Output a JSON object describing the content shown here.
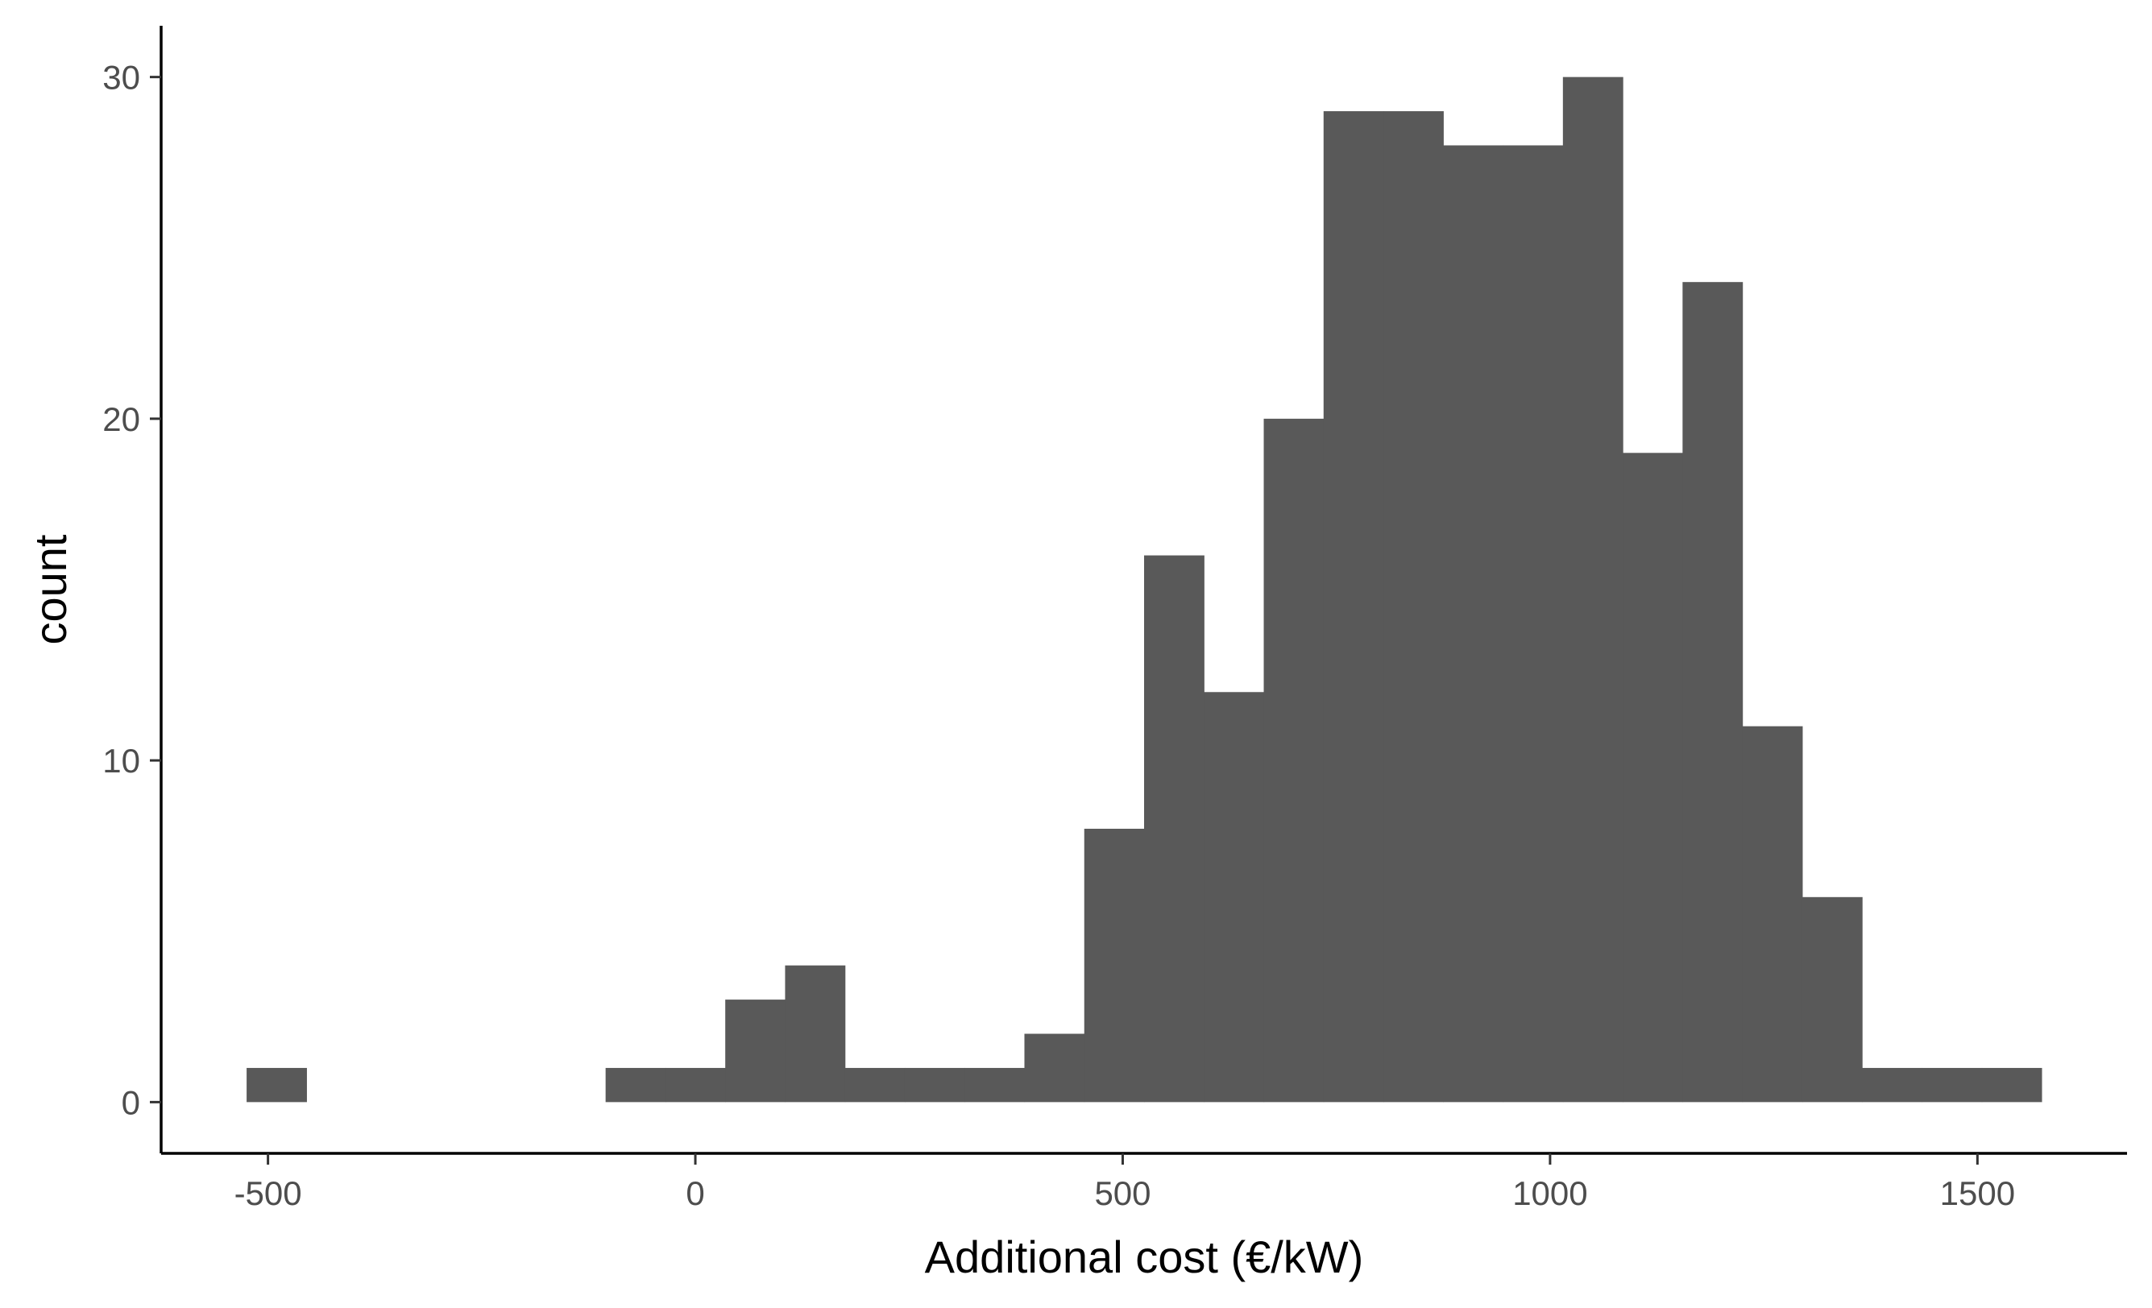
{
  "chart_data": {
    "type": "bar",
    "subtype": "histogram",
    "xlabel": "Additional cost (€/kW)",
    "ylabel": "count",
    "xlim": [
      -625,
      1675
    ],
    "ylim": [
      -1.5,
      31.5
    ],
    "x_ticks": [
      {
        "value": -500,
        "label": "-500"
      },
      {
        "value": 0,
        "label": "0"
      },
      {
        "value": 500,
        "label": "500"
      },
      {
        "value": 1000,
        "label": "1000"
      },
      {
        "value": 1500,
        "label": "1500"
      }
    ],
    "y_ticks": [
      {
        "value": 0,
        "label": "0"
      },
      {
        "value": 10,
        "label": "10"
      },
      {
        "value": 20,
        "label": "20"
      },
      {
        "value": 30,
        "label": "30"
      }
    ],
    "bin_width": 70,
    "bin_centers": [
      -490,
      -70,
      0,
      70,
      140,
      210,
      280,
      350,
      420,
      490,
      560,
      630,
      700,
      770,
      840,
      910,
      980,
      1050,
      1120,
      1190,
      1260,
      1330,
      1400,
      1470,
      1540
    ],
    "values": [
      1,
      1,
      1,
      3,
      4,
      1,
      1,
      1,
      2,
      8,
      16,
      12,
      20,
      29,
      29,
      28,
      28,
      30,
      19,
      24,
      11,
      6,
      1,
      1,
      1
    ],
    "bar_color": "#595959",
    "grid": false,
    "legend": "none"
  }
}
